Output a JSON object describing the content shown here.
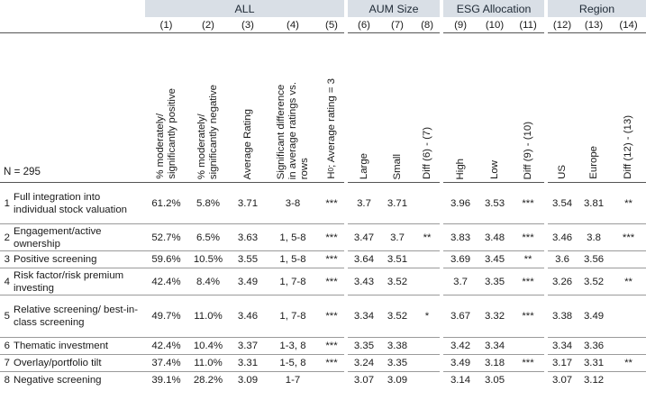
{
  "groups": {
    "all": "ALL",
    "aum": "AUM Size",
    "esg": "ESG Allocation",
    "region": "Region"
  },
  "numbers": [
    "(1)",
    "(2)",
    "(3)",
    "(4)",
    "(5)",
    "(6)",
    "(7)",
    "(8)",
    "(9)",
    "(10)",
    "(11)",
    "(12)",
    "(13)",
    "(14)"
  ],
  "n_label": "N = 295",
  "headers": {
    "c1": [
      "% moderately/",
      "significantly positive"
    ],
    "c2": [
      "% moderately/",
      "significantly negative"
    ],
    "c3": [
      "Average Rating"
    ],
    "c4": [
      "Significant difference",
      "in average ratings vs.",
      "rows"
    ],
    "c5_prefix": "H",
    "c5_sub": "0",
    "c5_rest": "; Average rating = 3",
    "c6": [
      "Large"
    ],
    "c7": [
      "Small"
    ],
    "c8": [
      "Diff (6) - (7)"
    ],
    "c9": [
      "High"
    ],
    "c10": [
      "Low"
    ],
    "c11": [
      "Diff (9) - (10)"
    ],
    "c12": [
      "US"
    ],
    "c13": [
      "Europe"
    ],
    "c14": [
      "Diff (12) - (13)"
    ]
  },
  "rows": [
    {
      "n": "1",
      "label": "Full integration into individual stock valuation",
      "v": [
        "61.2%",
        "5.8%",
        "3.71",
        "3-8",
        "***",
        "3.7",
        "3.71",
        "",
        "3.96",
        "3.53",
        "***",
        "3.54",
        "3.81",
        "**"
      ]
    },
    {
      "n": "2",
      "label": "Engagement/active ownership",
      "v": [
        "52.7%",
        "6.5%",
        "3.63",
        "1, 5-8",
        "***",
        "3.47",
        "3.7",
        "**",
        "3.83",
        "3.48",
        "***",
        "3.46",
        "3.8",
        "***"
      ]
    },
    {
      "n": "3",
      "label": "Positive screening",
      "v": [
        "59.6%",
        "10.5%",
        "3.55",
        "1, 5-8",
        "***",
        "3.64",
        "3.51",
        "",
        "3.69",
        "3.45",
        "**",
        "3.6",
        "3.56",
        ""
      ]
    },
    {
      "n": "4",
      "label": "Risk factor/risk premium investing",
      "v": [
        "42.4%",
        "8.4%",
        "3.49",
        "1, 7-8",
        "***",
        "3.43",
        "3.52",
        "",
        "3.7",
        "3.35",
        "***",
        "3.26",
        "3.52",
        "**"
      ]
    },
    {
      "n": "5",
      "label": "Relative screening/ best-in-class screening",
      "v": [
        "49.7%",
        "11.0%",
        "3.46",
        "1, 7-8",
        "***",
        "3.34",
        "3.52",
        "*",
        "3.67",
        "3.32",
        "***",
        "3.38",
        "3.49",
        ""
      ]
    },
    {
      "n": "6",
      "label": "Thematic investment",
      "v": [
        "42.4%",
        "10.4%",
        "3.37",
        "1-3, 8",
        "***",
        "3.35",
        "3.38",
        "",
        "3.42",
        "3.34",
        "",
        "3.34",
        "3.36",
        ""
      ]
    },
    {
      "n": "7",
      "label": "Overlay/portfolio tilt",
      "v": [
        "37.4%",
        "11.0%",
        "3.31",
        "1-5, 8",
        "***",
        "3.24",
        "3.35",
        "",
        "3.49",
        "3.18",
        "***",
        "3.17",
        "3.31",
        "**"
      ]
    },
    {
      "n": "8",
      "label": "Negative screening",
      "v": [
        "39.1%",
        "28.2%",
        "3.09",
        "1-7",
        "",
        "3.07",
        "3.09",
        "",
        "3.14",
        "3.05",
        "",
        "3.07",
        "3.12",
        ""
      ]
    }
  ]
}
